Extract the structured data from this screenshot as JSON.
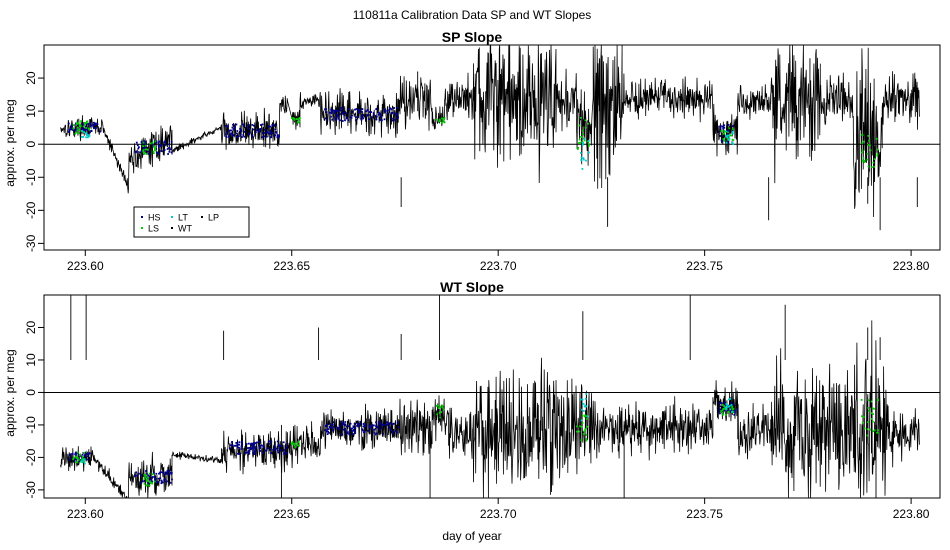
{
  "figure": {
    "title": "110811a   Calibration Data SP and WT Slopes",
    "xlabel": "day of year"
  },
  "colors": {
    "WT": "#000000",
    "HS": "#00008b",
    "LS": "#00cc00",
    "LT": "#00cccc",
    "LP": "#000000"
  },
  "chart_data": [
    {
      "type": "line",
      "title": "SP Slope",
      "xlabel": "",
      "ylabel": "approx. per meg",
      "xlim": [
        223.59,
        223.807
      ],
      "ylim": [
        -32,
        30
      ],
      "xticks": [
        223.6,
        223.65,
        223.7,
        223.75,
        223.8
      ],
      "xtick_labels": [
        "223.60",
        "223.65",
        "223.70",
        "223.75",
        "223.80"
      ],
      "yticks": [
        -30,
        -20,
        -10,
        0,
        10,
        20
      ],
      "ytick_labels": [
        "-30",
        "-20",
        "-10",
        "0",
        "10",
        "20"
      ],
      "hline": 0,
      "grid": false,
      "legend": {
        "placement": "bottom-left",
        "entries": [
          {
            "name": "HS",
            "color": "#00008b"
          },
          {
            "name": "LT",
            "color": "#00cccc"
          },
          {
            "name": "LP",
            "color": "#000000"
          },
          {
            "name": "LS",
            "color": "#00cc00"
          },
          {
            "name": "WT",
            "color": "#000000"
          }
        ]
      },
      "series": [
        {
          "name": "WT",
          "segments": [
            {
              "x0": 223.594,
              "x1": 223.6045,
              "mean": 5,
              "amp": 1.5
            },
            {
              "x0": 223.6045,
              "x1": 223.6105,
              "mean": -4,
              "amp": 1,
              "ramp": [
                4,
                -13
              ]
            },
            {
              "x0": 223.6105,
              "x1": 223.621,
              "mean": -1,
              "amp": 2.5,
              "ramp": [
                -5,
                2
              ]
            },
            {
              "x0": 223.621,
              "x1": 223.633,
              "mean": 1,
              "amp": 0.5,
              "ramp": [
                -2,
                5
              ]
            },
            {
              "x0": 223.633,
              "x1": 223.647,
              "mean": 4,
              "amp": 3
            },
            {
              "x0": 223.647,
              "x1": 223.649,
              "mean": 12,
              "amp": 2
            },
            {
              "x0": 223.65,
              "x1": 223.652,
              "mean": 8,
              "amp": 1.5
            },
            {
              "x0": 223.652,
              "x1": 223.657,
              "mean": 13,
              "amp": 1.5
            },
            {
              "x0": 223.657,
              "x1": 223.676,
              "mean": 9,
              "amp": 3
            },
            {
              "x0": 223.676,
              "x1": 223.684,
              "mean": 14,
              "amp": 4
            },
            {
              "x0": 223.684,
              "x1": 223.687,
              "mean": 8,
              "amp": 2
            },
            {
              "x0": 223.687,
              "x1": 223.694,
              "mean": 14,
              "amp": 3
            },
            {
              "x0": 223.694,
              "x1": 223.714,
              "mean": 14,
              "amp": 10
            },
            {
              "x0": 223.714,
              "x1": 223.719,
              "mean": 13,
              "amp": 4
            },
            {
              "x0": 223.719,
              "x1": 223.723,
              "mean": 5,
              "amp": 6
            },
            {
              "x0": 223.723,
              "x1": 223.73,
              "mean": 14,
              "amp": 13
            },
            {
              "x0": 223.73,
              "x1": 223.752,
              "mean": 14,
              "amp": 3
            },
            {
              "x0": 223.752,
              "x1": 223.758,
              "mean": 4,
              "amp": 3
            },
            {
              "x0": 223.758,
              "x1": 223.766,
              "mean": 13,
              "amp": 2.5
            },
            {
              "x0": 223.766,
              "x1": 223.778,
              "mean": 13,
              "amp": 9
            },
            {
              "x0": 223.778,
              "x1": 223.786,
              "mean": 13,
              "amp": 4
            },
            {
              "x0": 223.786,
              "x1": 223.793,
              "mean": 2,
              "amp": 12
            },
            {
              "x0": 223.793,
              "x1": 223.802,
              "mean": 13,
              "amp": 4
            }
          ],
          "spikes": [
            [
              223.6765,
              -19
            ],
            [
              223.7265,
              -25
            ],
            [
              223.7655,
              -23
            ],
            [
              223.7895,
              -18
            ],
            [
              223.7925,
              -26
            ],
            [
              223.8015,
              -19
            ],
            [
              223.6805,
              22
            ],
            [
              223.7245,
              26
            ],
            [
              223.7755,
              26
            ]
          ]
        },
        {
          "name": "HS",
          "ranges": [
            [
              223.596,
              223.604,
              5,
              1.5
            ],
            [
              223.612,
              223.621,
              -1,
              2
            ],
            [
              223.634,
              223.647,
              4,
              2
            ],
            [
              223.658,
              223.676,
              9,
              2
            ],
            [
              223.7535,
              223.757,
              3,
              3
            ]
          ]
        },
        {
          "name": "LS",
          "ranges": [
            [
              223.597,
              223.601,
              5,
              2
            ],
            [
              223.614,
              223.617,
              -1,
              2
            ],
            [
              223.65,
              223.652,
              7,
              1
            ],
            [
              223.685,
              223.687,
              7,
              1
            ],
            [
              223.719,
              223.722,
              3,
              5
            ],
            [
              223.754,
              223.757,
              3,
              2
            ],
            [
              223.788,
              223.792,
              -2,
              5
            ]
          ]
        },
        {
          "name": "LT",
          "ranges": [
            [
              223.599,
              223.601,
              3,
              1
            ],
            [
              223.72,
              223.722,
              -3,
              5
            ],
            [
              223.755,
              223.757,
              2,
              2
            ]
          ]
        }
      ]
    },
    {
      "type": "line",
      "title": "WT Slope",
      "xlabel": "day of year",
      "ylabel": "approx. per meg",
      "xlim": [
        223.59,
        223.807
      ],
      "ylim": [
        -32.5,
        30
      ],
      "xticks": [
        223.6,
        223.65,
        223.7,
        223.75,
        223.8
      ],
      "xtick_labels": [
        "223.60",
        "223.65",
        "223.70",
        "223.75",
        "223.80"
      ],
      "yticks": [
        -30,
        -20,
        -10,
        0,
        10,
        20
      ],
      "ytick_labels": [
        "-30",
        "-20",
        "-10",
        "0",
        "10",
        "20"
      ],
      "hline": 0,
      "grid": false,
      "series": [
        {
          "name": "WT",
          "segments": [
            {
              "x0": 223.594,
              "x1": 223.6015,
              "mean": -20,
              "amp": 2
            },
            {
              "x0": 223.6015,
              "x1": 223.6105,
              "mean": -26,
              "amp": 1,
              "ramp": [
                -19,
                -34
              ]
            },
            {
              "x0": 223.6105,
              "x1": 223.621,
              "mean": -26,
              "amp": 3
            },
            {
              "x0": 223.621,
              "x1": 223.633,
              "mean": -20,
              "amp": 0.5,
              "ramp": [
                -19,
                -21
              ]
            },
            {
              "x0": 223.633,
              "x1": 223.649,
              "mean": -18,
              "amp": 3
            },
            {
              "x0": 223.649,
              "x1": 223.657,
              "mean": -16,
              "amp": 3
            },
            {
              "x0": 223.657,
              "x1": 223.676,
              "mean": -11,
              "amp": 3
            },
            {
              "x0": 223.676,
              "x1": 223.684,
              "mean": -11,
              "amp": 5
            },
            {
              "x0": 223.684,
              "x1": 223.688,
              "mean": -8,
              "amp": 3
            },
            {
              "x0": 223.688,
              "x1": 223.694,
              "mean": -13,
              "amp": 4
            },
            {
              "x0": 223.694,
              "x1": 223.714,
              "mean": -12,
              "amp": 10
            },
            {
              "x0": 223.714,
              "x1": 223.724,
              "mean": -10,
              "amp": 8
            },
            {
              "x0": 223.724,
              "x1": 223.752,
              "mean": -11,
              "amp": 4
            },
            {
              "x0": 223.752,
              "x1": 223.758,
              "mean": -4,
              "amp": 3
            },
            {
              "x0": 223.758,
              "x1": 223.766,
              "mean": -12,
              "amp": 4
            },
            {
              "x0": 223.766,
              "x1": 223.786,
              "mean": -12,
              "amp": 10
            },
            {
              "x0": 223.786,
              "x1": 223.794,
              "mean": -12,
              "amp": 12
            },
            {
              "x0": 223.794,
              "x1": 223.802,
              "mean": -12,
              "amp": 4
            }
          ],
          "spikes": [
            [
              223.5965,
              30
            ],
            [
              223.6002,
              30
            ],
            [
              223.6335,
              19
            ],
            [
              223.6565,
              20
            ],
            [
              223.6765,
              18
            ],
            [
              223.6858,
              30
            ],
            [
              223.7205,
              25
            ],
            [
              223.7465,
              30
            ],
            [
              223.7695,
              27
            ],
            [
              223.7895,
              20
            ],
            [
              223.7925,
              17
            ],
            [
              223.6475,
              -33
            ],
            [
              223.6835,
              -33
            ],
            [
              223.7305,
              -33
            ],
            [
              223.7915,
              -33
            ]
          ]
        },
        {
          "name": "HS",
          "ranges": [
            [
              223.596,
              223.601,
              -20,
              1.5
            ],
            [
              223.612,
              223.621,
              -26,
              2
            ],
            [
              223.634,
              223.649,
              -17,
              2
            ],
            [
              223.658,
              223.676,
              -11,
              2
            ],
            [
              223.7535,
              223.758,
              -5,
              2
            ]
          ]
        },
        {
          "name": "LS",
          "ranges": [
            [
              223.597,
              223.6,
              -20,
              2
            ],
            [
              223.614,
              223.617,
              -27,
              2
            ],
            [
              223.65,
              223.652,
              -16,
              1
            ],
            [
              223.685,
              223.687,
              -6,
              2
            ],
            [
              223.719,
              223.722,
              -11,
              4
            ],
            [
              223.754,
              223.757,
              -5,
              2
            ],
            [
              223.788,
              223.792,
              -8,
              6
            ]
          ]
        },
        {
          "name": "LT",
          "ranges": [
            [
              223.599,
              223.6,
              -21,
              1
            ],
            [
              223.72,
              223.722,
              -4,
              5
            ],
            [
              223.755,
              223.757,
              -4,
              2
            ]
          ]
        }
      ]
    }
  ]
}
